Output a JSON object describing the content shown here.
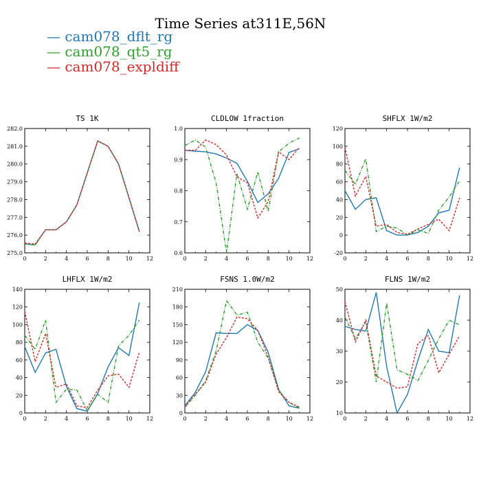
{
  "title": "Time Series at311E,56N",
  "legend": [
    {
      "name": "cam078_dflt_rg",
      "color": "#1f77b4"
    },
    {
      "name": "cam078_qt5_rg",
      "color": "#2ca02c"
    },
    {
      "name": "cam078_expldiff",
      "color": "#d62728"
    }
  ],
  "chart_data": [
    {
      "type": "line",
      "title": "TS   1K",
      "x": [
        0,
        1,
        2,
        3,
        4,
        5,
        6,
        7,
        8,
        9,
        10,
        11
      ],
      "xlim": [
        0,
        12
      ],
      "xticks": [
        0,
        2,
        4,
        6,
        8,
        10,
        12
      ],
      "ylim": [
        275,
        282
      ],
      "yticks": [
        "275.0",
        "276.0",
        "277.0",
        "278.0",
        "279.0",
        "280.0",
        "281.0",
        "282.0"
      ],
      "series": [
        {
          "name": "cam078_dflt_rg",
          "values": [
            275.5,
            275.45,
            276.3,
            276.3,
            276.75,
            277.7,
            279.5,
            281.3,
            281.0,
            280.0,
            278.1,
            276.2
          ]
        },
        {
          "name": "cam078_qt5_rg",
          "values": [
            275.5,
            275.45,
            276.3,
            276.3,
            276.75,
            277.7,
            279.5,
            281.3,
            281.0,
            280.0,
            278.1,
            276.2
          ]
        },
        {
          "name": "cam078_expldiff",
          "values": [
            275.55,
            275.5,
            276.3,
            276.3,
            276.75,
            277.7,
            279.5,
            281.3,
            281.0,
            280.0,
            278.1,
            276.2
          ]
        }
      ]
    },
    {
      "type": "line",
      "title": "CLDLOW   1fraction",
      "x": [
        0,
        1,
        2,
        3,
        4,
        5,
        6,
        7,
        8,
        9,
        10,
        11
      ],
      "xlim": [
        0,
        12
      ],
      "xticks": [
        0,
        2,
        4,
        6,
        8,
        10,
        12
      ],
      "ylim": [
        0.6,
        1.0
      ],
      "yticks": [
        "0.6",
        "0.7",
        "0.8",
        "0.9",
        "1.0"
      ],
      "series": [
        {
          "name": "cam078_dflt_rg",
          "values": [
            0.93,
            0.927,
            0.925,
            0.918,
            0.905,
            0.888,
            0.83,
            0.762,
            0.79,
            0.84,
            0.923,
            0.935
          ]
        },
        {
          "name": "cam078_qt5_rg",
          "values": [
            0.945,
            0.963,
            0.94,
            0.825,
            0.6,
            0.855,
            0.74,
            0.86,
            0.733,
            0.925,
            0.953,
            0.97
          ]
        },
        {
          "name": "cam078_expldiff",
          "values": [
            0.93,
            0.93,
            0.963,
            0.948,
            0.915,
            0.845,
            0.825,
            0.712,
            0.765,
            0.925,
            0.9,
            0.94
          ]
        }
      ]
    },
    {
      "type": "line",
      "title": "SHFLX   1W/m2",
      "x": [
        0,
        1,
        2,
        3,
        4,
        5,
        6,
        7,
        8,
        9,
        10,
        11
      ],
      "xlim": [
        0,
        12
      ],
      "xticks": [
        0,
        2,
        4,
        6,
        8,
        10,
        12
      ],
      "ylim": [
        -20,
        120
      ],
      "yticks": [
        "-20",
        "0",
        "20",
        "40",
        "60",
        "80",
        "100",
        "120"
      ],
      "series": [
        {
          "name": "cam078_dflt_rg",
          "values": [
            50,
            29,
            40,
            42,
            5,
            0,
            0,
            3,
            10,
            25,
            28,
            76
          ]
        },
        {
          "name": "cam078_qt5_rg",
          "values": [
            73,
            57,
            86,
            4,
            10,
            8,
            0,
            6,
            2,
            28,
            43,
            61
          ]
        },
        {
          "name": "cam078_expldiff",
          "values": [
            99,
            44,
            66,
            10,
            12,
            3,
            1,
            7,
            12,
            18,
            5,
            42
          ]
        }
      ]
    },
    {
      "type": "line",
      "title": "LHFLX   1W/m2",
      "x": [
        0,
        1,
        2,
        3,
        4,
        5,
        6,
        7,
        8,
        9,
        10,
        11
      ],
      "xlim": [
        0,
        12
      ],
      "xticks": [
        0,
        2,
        4,
        6,
        8,
        10,
        12
      ],
      "ylim": [
        0,
        140
      ],
      "yticks": [
        "0",
        "20",
        "40",
        "60",
        "80",
        "100",
        "120",
        "140"
      ],
      "series": [
        {
          "name": "cam078_dflt_rg",
          "values": [
            75,
            46,
            68,
            72,
            30,
            5,
            2,
            22,
            52,
            74,
            65,
            125
          ]
        },
        {
          "name": "cam078_qt5_rg",
          "values": [
            88,
            72,
            105,
            12,
            27,
            26,
            3,
            21,
            12,
            76,
            88,
            105
          ]
        },
        {
          "name": "cam078_expldiff",
          "values": [
            115,
            58,
            90,
            29,
            33,
            8,
            6,
            26,
            42,
            44,
            29,
            69
          ]
        }
      ]
    },
    {
      "type": "line",
      "title": "FSNS   1.0W/m2",
      "x": [
        0,
        1,
        2,
        3,
        4,
        5,
        6,
        7,
        8,
        9,
        10,
        11
      ],
      "xlim": [
        0,
        12
      ],
      "xticks": [
        0,
        2,
        4,
        6,
        8,
        10,
        12
      ],
      "ylim": [
        0,
        210
      ],
      "yticks": [
        "0",
        "30",
        "60",
        "90",
        "120",
        "150",
        "180",
        "210"
      ],
      "series": [
        {
          "name": "cam078_dflt_rg",
          "values": [
            12,
            35,
            70,
            136,
            135,
            135,
            150,
            140,
            103,
            40,
            12,
            8
          ]
        },
        {
          "name": "cam078_qt5_rg",
          "values": [
            10,
            30,
            55,
            105,
            191,
            166,
            171,
            120,
            93,
            38,
            18,
            8
          ]
        },
        {
          "name": "cam078_expldiff",
          "values": [
            10,
            32,
            52,
            100,
            128,
            163,
            160,
            140,
            95,
            36,
            18,
            10
          ]
        }
      ]
    },
    {
      "type": "line",
      "title": "FLNS   1W/m2",
      "x": [
        0,
        1,
        2,
        3,
        4,
        5,
        6,
        7,
        8,
        9,
        10,
        11
      ],
      "xlim": [
        0,
        12
      ],
      "xticks": [
        0,
        2,
        4,
        6,
        8,
        10,
        12
      ],
      "ylim": [
        10,
        50
      ],
      "yticks": [
        "10",
        "20",
        "30",
        "40",
        "50"
      ],
      "series": [
        {
          "name": "cam078_dflt_rg",
          "values": [
            38,
            37,
            36.5,
            49,
            25,
            10,
            16,
            27,
            37,
            30,
            29.5,
            48
          ]
        },
        {
          "name": "cam078_qt5_rg",
          "values": [
            41,
            34,
            39.5,
            20,
            45.5,
            24,
            22.5,
            20.5,
            27,
            34,
            40,
            38.5
          ]
        },
        {
          "name": "cam078_expldiff",
          "values": [
            46,
            33,
            40,
            22,
            20,
            18,
            18.5,
            32.5,
            35,
            23,
            29,
            35
          ]
        }
      ]
    }
  ]
}
